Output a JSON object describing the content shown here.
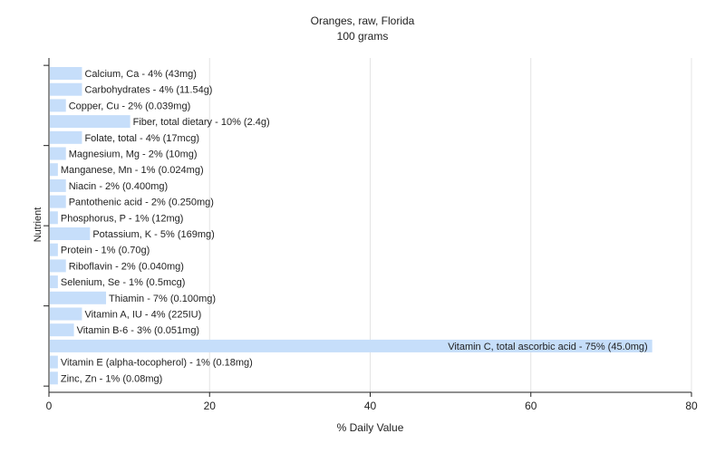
{
  "chart_data": {
    "type": "bar",
    "orientation": "horizontal",
    "title": "Oranges, raw, Florida",
    "subtitle": "100 grams",
    "xlabel": "% Daily Value",
    "ylabel": "Nutrient",
    "xlim": [
      0,
      80
    ],
    "xticks": [
      0,
      20,
      40,
      60,
      80
    ],
    "grid": true,
    "bar_color": "#c6defa",
    "grid_color": "#e4e4e4",
    "categories": [
      "Calcium, Ca - 4% (43mg)",
      "Carbohydrates - 4% (11.54g)",
      "Copper, Cu - 2% (0.039mg)",
      "Fiber, total dietary - 10% (2.4g)",
      "Folate, total - 4% (17mcg)",
      "Magnesium, Mg - 2% (10mg)",
      "Manganese, Mn - 1% (0.024mg)",
      "Niacin - 2% (0.400mg)",
      "Pantothenic acid - 2% (0.250mg)",
      "Phosphorus, P - 1% (12mg)",
      "Potassium, K - 5% (169mg)",
      "Protein - 1% (0.70g)",
      "Riboflavin - 2% (0.040mg)",
      "Selenium, Se - 1% (0.5mcg)",
      "Thiamin - 7% (0.100mg)",
      "Vitamin A, IU - 4% (225IU)",
      "Vitamin B-6 - 3% (0.051mg)",
      "Vitamin C, total ascorbic acid - 75% (45.0mg)",
      "Vitamin E (alpha-tocopherol) - 1% (0.18mg)",
      "Zinc, Zn - 1% (0.08mg)"
    ],
    "values": [
      4,
      4,
      2,
      10,
      4,
      2,
      1,
      2,
      2,
      1,
      5,
      1,
      2,
      1,
      7,
      4,
      3,
      75,
      1,
      1
    ]
  }
}
